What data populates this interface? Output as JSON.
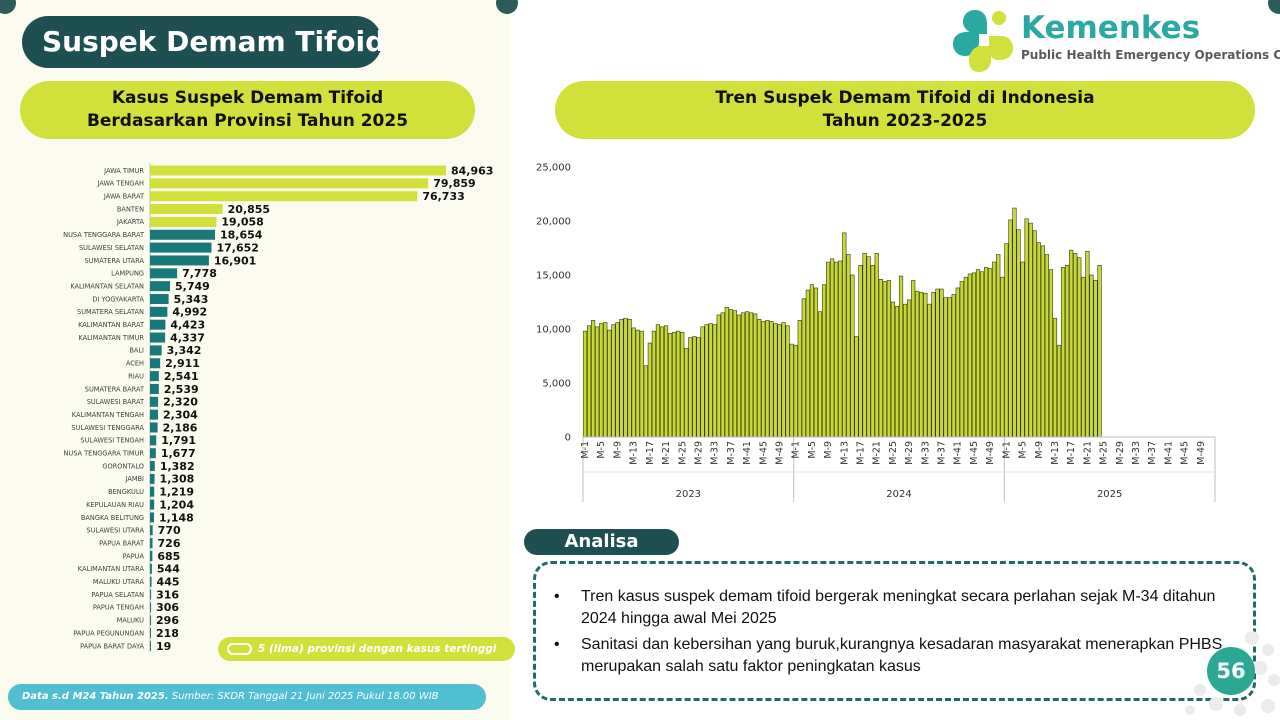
{
  "title": "Suspek Demam Tifoid",
  "logo": {
    "name": "Kemenkes",
    "subtitle": "Public Health Emergency Operations Center"
  },
  "left_header": {
    "line1": "Kasus Suspek Demam Tifoid",
    "line2": "Berdasarkan Provinsi Tahun 2025"
  },
  "right_header": {
    "line1": "Tren Suspek Demam Tifoid di Indonesia",
    "line2": "Tahun 2023-2025"
  },
  "legend_note": "5 (lima) provinsi dengan kasus tertinggi",
  "footer": {
    "bold": "Data s.d M24 Tahun 2025.",
    "rest": " Sumber: SKDR Tanggal 21 Juni 2025 Pukul 18.00 WIB"
  },
  "analysis": {
    "tab": "Analisa",
    "bullets": [
      "Tren kasus suspek demam tifoid  bergerak meningkat secara perlahan sejak M-34 ditahun 2024 hingga awal Mei 2025",
      "Sanitasi dan kebersihan yang buruk,kurangnya kesadaran masyarakat menerapkan PHBS merupakan salah satu faktor peningkatan kasus"
    ]
  },
  "page_number": "56",
  "colors": {
    "highlight": "#d2e03c",
    "teal": "#19787a",
    "dark": "#1e4f53",
    "trend_bar": "#c9d838"
  },
  "chart_data": [
    {
      "type": "bar",
      "orientation": "horizontal",
      "categories": [
        "JAWA TIMUR",
        "JAWA TENGAH",
        "JAWA BARAT",
        "BANTEN",
        "JAKARTA",
        "NUSA TENGGARA BARAT",
        "SULAWESI SELATAN",
        "SUMATERA UTARA",
        "LAMPUNG",
        "KALIMANTAN SELATAN",
        "DI YOGYAKARTA",
        "SUMATERA SELATAN",
        "KALIMANTAN BARAT",
        "KALIMANTAN TIMUR",
        "BALI",
        "ACEH",
        "RIAU",
        "SUMATERA BARAT",
        "SULAWESI BARAT",
        "KALIMANTAN TENGAH",
        "SULAWESI TENGGARA",
        "SULAWESI TENGAH",
        "NUSA TENGGARA TIMUR",
        "GORONTALO",
        "JAMBI",
        "BENGKULU",
        "KEPULAUAN RIAU",
        "BANGKA BELITUNG",
        "SULAWESI UTARA",
        "PAPUA BARAT",
        "PAPUA",
        "KALIMANTAN UTARA",
        "MALUKU UTARA",
        "PAPUA SELATAN",
        "PAPUA TENGAH",
        "MALUKU",
        "PAPUA PEGUNUNGAN",
        "PAPUA BARAT DAYA"
      ],
      "values": [
        84963,
        79859,
        76733,
        20855,
        19058,
        18654,
        17652,
        16901,
        7778,
        5749,
        5343,
        4992,
        4423,
        4337,
        3342,
        2911,
        2541,
        2539,
        2320,
        2304,
        2186,
        1791,
        1677,
        1382,
        1308,
        1219,
        1204,
        1148,
        770,
        726,
        685,
        544,
        445,
        316,
        306,
        296,
        218,
        19
      ],
      "labels": [
        "84,963",
        "79,859",
        "76,733",
        "20,855",
        "19,058",
        "18,654",
        "17,652",
        "16,901",
        "7,778",
        "5,749",
        "5,343",
        "4,992",
        "4,423",
        "4,337",
        "3,342",
        "2,911",
        "2,541",
        "2,539",
        "2,320",
        "2,304",
        "2,186",
        "1,791",
        "1,677",
        "1,382",
        "1,308",
        "1,219",
        "1,204",
        "1,148",
        "770",
        "726",
        "685",
        "544",
        "445",
        "316",
        "306",
        "296",
        "218",
        "19"
      ],
      "highlight_top": 5,
      "xlim": [
        0,
        84963
      ]
    },
    {
      "type": "bar",
      "ylim": [
        0,
        25000
      ],
      "yticks": [
        "0",
        "5,000",
        "10,000",
        "15,000",
        "20,000",
        "25,000"
      ],
      "ytick_values": [
        0,
        5000,
        10000,
        15000,
        20000,
        25000
      ],
      "years": [
        "2023",
        "2024",
        "2025"
      ],
      "weeks_per_year": 52,
      "week_tick_labels": [
        "M-1",
        "M-5",
        "M-9",
        "M-13",
        "M-17",
        "M-21",
        "M-25",
        "M-29",
        "M-33",
        "M-37",
        "M-41",
        "M-45",
        "M-49"
      ],
      "series": [
        {
          "year": "2023",
          "values": [
            9800,
            10300,
            10800,
            10200,
            10500,
            10600,
            9900,
            10400,
            10600,
            10900,
            11000,
            10900,
            10100,
            9900,
            9800,
            6600,
            8700,
            9800,
            10400,
            10200,
            10300,
            9600,
            9700,
            9800,
            9700,
            8200,
            9200,
            9300,
            9200,
            10200,
            10400,
            10500,
            10400,
            11300,
            11500,
            12000,
            11800,
            11700,
            11300,
            11500,
            11600,
            11500,
            11400,
            10900,
            10700,
            10800,
            10700,
            10500,
            10400,
            10600,
            10300,
            8600
          ]
        },
        {
          "year": "2024",
          "values": [
            8500,
            10800,
            12800,
            13600,
            14100,
            13800,
            11600,
            14100,
            16200,
            16500,
            16200,
            16300,
            18900,
            16900,
            15000,
            9300,
            15900,
            17000,
            16700,
            15900,
            17000,
            14600,
            14400,
            14500,
            12500,
            12100,
            14900,
            12300,
            12700,
            14500,
            13500,
            13400,
            13300,
            12300,
            13400,
            13700,
            13700,
            12900,
            12900,
            13200,
            13800,
            14400,
            14800,
            15100,
            15200,
            15500,
            15300,
            15700,
            15600,
            16200,
            16900,
            14800
          ]
        },
        {
          "year": "2025",
          "values": [
            17900,
            20100,
            21200,
            19200,
            16200,
            20200,
            19800,
            19100,
            18000,
            17700,
            16900,
            15500,
            11000,
            8500,
            15700,
            15900,
            17300,
            17000,
            16600,
            14800,
            17200,
            15000,
            14500,
            15900
          ]
        }
      ]
    }
  ]
}
